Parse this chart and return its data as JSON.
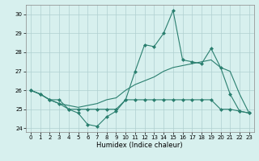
{
  "xlabel": "Humidex (Indice chaleur)",
  "x": [
    0,
    1,
    2,
    3,
    4,
    5,
    6,
    7,
    8,
    9,
    10,
    11,
    12,
    13,
    14,
    15,
    16,
    17,
    18,
    19,
    20,
    21,
    22,
    23
  ],
  "line1": [
    26.0,
    25.8,
    25.5,
    25.5,
    25.0,
    24.8,
    24.2,
    24.1,
    24.6,
    24.9,
    25.5,
    27.0,
    28.4,
    28.3,
    29.0,
    30.2,
    27.6,
    27.5,
    27.4,
    28.2,
    27.2,
    25.8,
    24.9,
    24.8
  ],
  "line2": [
    26.0,
    25.8,
    25.5,
    25.3,
    25.0,
    25.0,
    25.0,
    25.0,
    25.0,
    25.0,
    25.5,
    25.5,
    25.5,
    25.5,
    25.5,
    25.5,
    25.5,
    25.5,
    25.5,
    25.5,
    25.0,
    25.0,
    24.9,
    24.8
  ],
  "line3": [
    26.0,
    25.8,
    25.5,
    25.3,
    25.2,
    25.1,
    25.2,
    25.3,
    25.5,
    25.6,
    26.0,
    26.3,
    26.5,
    26.7,
    27.0,
    27.2,
    27.3,
    27.4,
    27.5,
    27.6,
    27.2,
    27.0,
    25.8,
    24.8
  ],
  "line_color": "#2a7f6f",
  "bg_color": "#d7f0ee",
  "grid_color": "#b0d0d0",
  "xlim": [
    -0.5,
    23.5
  ],
  "ylim": [
    23.8,
    30.5
  ],
  "yticks": [
    24,
    25,
    26,
    27,
    28,
    29,
    30
  ],
  "xticks": [
    0,
    1,
    2,
    3,
    4,
    5,
    6,
    7,
    8,
    9,
    10,
    11,
    12,
    13,
    14,
    15,
    16,
    17,
    18,
    19,
    20,
    21,
    22,
    23
  ]
}
